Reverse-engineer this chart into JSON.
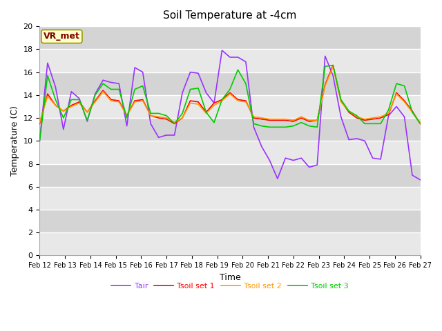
{
  "title": "Soil Temperature at -4cm",
  "xlabel": "Time",
  "ylabel": "Temperature (C)",
  "ylim": [
    0,
    20
  ],
  "xlim": [
    0,
    15
  ],
  "fig_bg_color": "#ffffff",
  "plot_bg_color": "#d8d8d8",
  "band_color_light": "#e8e8e8",
  "band_color_dark": "#d0d0d0",
  "grid_color": "#ffffff",
  "x_tick_labels": [
    "Feb 12",
    "Feb 13",
    "Feb 14",
    "Feb 15",
    "Feb 16",
    "Feb 17",
    "Feb 18",
    "Feb 19",
    "Feb 20",
    "Feb 21",
    "Feb 22",
    "Feb 23",
    "Feb 24",
    "Feb 25",
    "Feb 26",
    "Feb 27"
  ],
  "legend_entries": [
    "Tair",
    "Tsoil set 1",
    "Tsoil set 2",
    "Tsoil set 3"
  ],
  "line_colors": [
    "#9933ff",
    "#ff0000",
    "#ff9900",
    "#00cc00"
  ],
  "annotation_text": "VR_met",
  "annotation_color": "#800000",
  "annotation_bg": "#ffffcc",
  "annotation_edge": "#999900",
  "Tair": [
    10.0,
    16.8,
    14.7,
    11.0,
    14.3,
    13.7,
    11.7,
    14.1,
    15.3,
    15.1,
    15.0,
    11.3,
    16.4,
    16.0,
    11.5,
    10.3,
    10.5,
    10.5,
    14.2,
    16.0,
    15.9,
    14.2,
    13.3,
    17.9,
    17.3,
    17.3,
    16.9,
    11.2,
    9.5,
    8.3,
    6.7,
    8.5,
    8.3,
    8.5,
    7.7,
    7.9,
    17.4,
    15.7,
    12.1,
    10.1,
    10.2,
    10.0,
    8.5,
    8.4,
    12.2,
    13.0,
    12.1,
    7.0,
    6.6
  ],
  "Tsoil1": [
    11.5,
    14.1,
    13.1,
    12.6,
    13.1,
    13.4,
    12.5,
    13.5,
    14.4,
    13.6,
    13.5,
    12.2,
    13.5,
    13.6,
    12.2,
    12.0,
    11.9,
    11.5,
    12.0,
    13.5,
    13.4,
    12.5,
    13.3,
    13.6,
    14.2,
    13.6,
    13.5,
    12.0,
    11.9,
    11.8,
    11.8,
    11.8,
    11.7,
    12.0,
    11.7,
    11.8,
    14.9,
    16.6,
    13.5,
    12.5,
    12.0,
    11.8,
    11.9,
    12.0,
    12.3,
    14.2,
    13.5,
    12.6,
    11.5
  ],
  "Tsoil2": [
    11.6,
    13.9,
    13.1,
    12.6,
    13.0,
    13.3,
    12.5,
    13.4,
    14.3,
    13.5,
    13.4,
    12.2,
    13.4,
    13.5,
    12.2,
    12.1,
    12.0,
    11.6,
    12.0,
    13.3,
    13.2,
    12.4,
    13.1,
    13.5,
    14.1,
    13.5,
    13.4,
    12.1,
    12.0,
    11.9,
    11.9,
    11.9,
    11.8,
    12.1,
    11.8,
    11.8,
    14.8,
    16.5,
    13.4,
    12.6,
    12.1,
    11.9,
    12.0,
    12.1,
    12.4,
    14.1,
    13.4,
    12.5,
    11.6
  ],
  "Tsoil3": [
    10.0,
    15.7,
    13.6,
    12.0,
    13.6,
    13.6,
    11.8,
    14.0,
    15.0,
    14.5,
    14.5,
    12.0,
    14.5,
    14.8,
    12.4,
    12.4,
    12.2,
    11.5,
    12.4,
    14.5,
    14.6,
    12.5,
    11.6,
    13.6,
    14.5,
    16.2,
    15.0,
    11.5,
    11.3,
    11.2,
    11.2,
    11.2,
    11.3,
    11.6,
    11.3,
    11.2,
    16.5,
    16.6,
    13.6,
    12.6,
    12.2,
    11.5,
    11.5,
    11.5,
    12.7,
    15.0,
    14.8,
    12.5,
    11.5
  ]
}
